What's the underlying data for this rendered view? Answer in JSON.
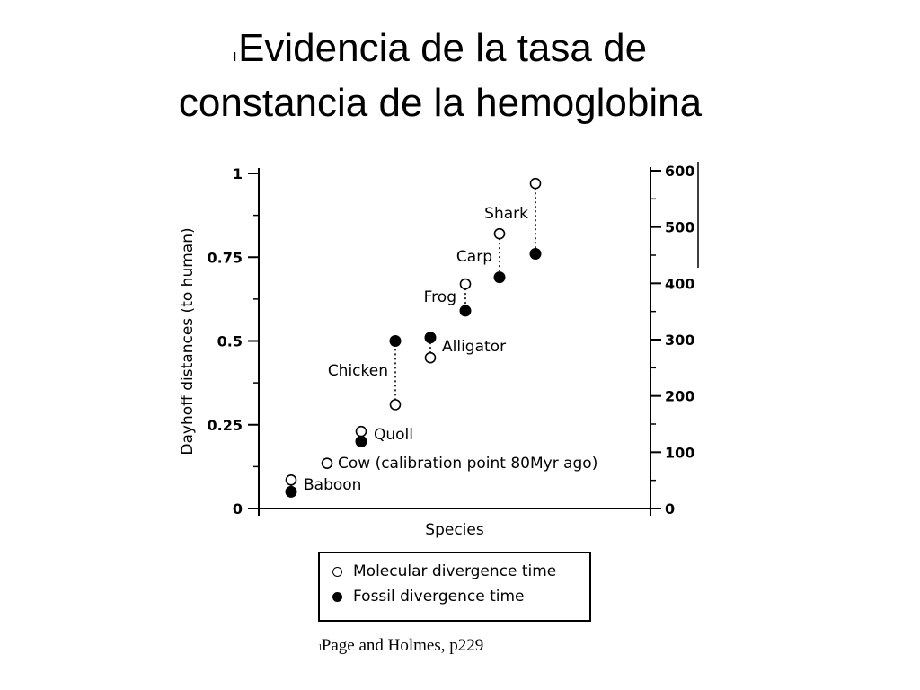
{
  "slide": {
    "title_line1": "Evidencia de la tasa de",
    "title_line2": "constancia de la hemoglobina",
    "bullet": "l",
    "source": "Page and Holmes, p229"
  },
  "chart_data": {
    "type": "scatter",
    "title": "",
    "xlabel": "Species",
    "ylabel": "Dayhoff distances (to human)",
    "ylim": [
      0,
      1
    ],
    "y_ticks": [
      "0",
      "0.25",
      "0.5",
      "0.75",
      "1"
    ],
    "y2lim": [
      0,
      600
    ],
    "y2_ticks": [
      "0",
      "100",
      "200",
      "300",
      "400",
      "500",
      "600"
    ],
    "categories": [
      "Baboon",
      "Cow (calibration point 80 Myr ago)",
      "Quoll",
      "Chicken",
      "Alligator",
      "Frog",
      "Carp",
      "Shark"
    ],
    "series": [
      {
        "name": "Molecular divergence time",
        "marker": "open",
        "values": [
          0.085,
          0.135,
          0.23,
          0.31,
          0.45,
          0.67,
          0.82,
          0.97
        ]
      },
      {
        "name": "Fossil divergence time",
        "marker": "filled",
        "values": [
          0.05,
          null,
          0.2,
          0.5,
          0.51,
          0.59,
          0.69,
          0.76
        ]
      }
    ],
    "grid": false,
    "legend": "bottom"
  },
  "legend": {
    "molecular": "Molecular divergence time",
    "fossil": "Fossil divergence time"
  },
  "colors": {
    "marker": "#000000",
    "background": "#ffffff"
  }
}
